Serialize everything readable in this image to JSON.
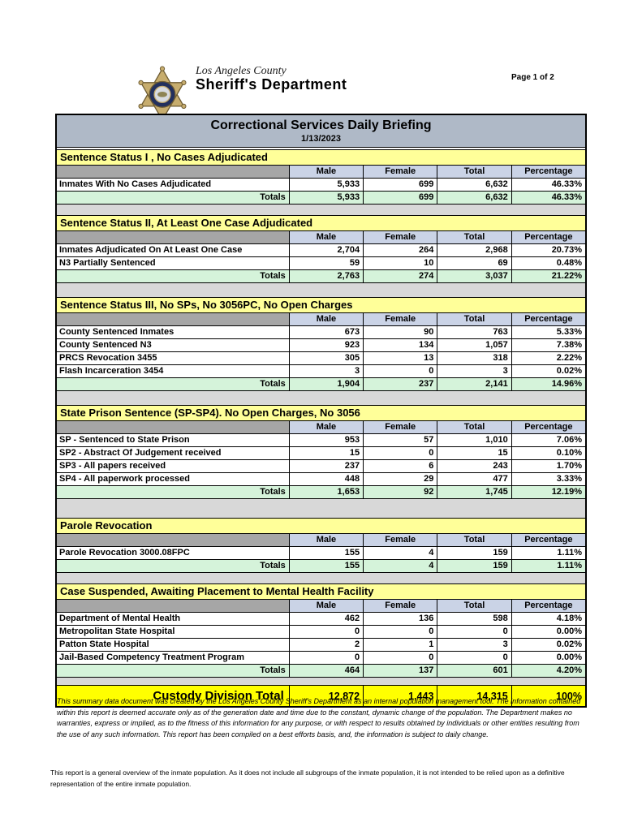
{
  "header": {
    "county": "Los Angeles County",
    "department": "Sheriff's Department",
    "page_label": "Page 1 of 2"
  },
  "title": {
    "main": "Correctional Services Daily Briefing",
    "date": "1/13/2023"
  },
  "table": {
    "columns": [
      "Male",
      "Female",
      "Total",
      "Percentage"
    ],
    "totals_label": "Totals",
    "sections": [
      {
        "title": "Sentence Status I , No Cases Adjudicated",
        "rows": [
          {
            "label": "Inmates With No Cases Adjudicated",
            "values": [
              "5,933",
              "699",
              "6,632",
              "46.33%"
            ]
          }
        ],
        "totals": [
          "5,933",
          "699",
          "6,632",
          "46.33%"
        ]
      },
      {
        "title": "Sentence Status II, At Least One Case Adjudicated",
        "rows": [
          {
            "label": "Inmates Adjudicated On At Least One Case",
            "values": [
              "2,704",
              "264",
              "2,968",
              "20.73%"
            ]
          },
          {
            "label": "N3 Partially Sentenced",
            "values": [
              "59",
              "10",
              "69",
              "0.48%"
            ]
          }
        ],
        "totals": [
          "2,763",
          "274",
          "3,037",
          "21.22%"
        ]
      },
      {
        "title": "Sentence Status III, No SPs, No 3056PC, No Open Charges",
        "rows": [
          {
            "label": "County Sentenced Inmates",
            "values": [
              "673",
              "90",
              "763",
              "5.33%"
            ]
          },
          {
            "label": "County Sentenced N3",
            "values": [
              "923",
              "134",
              "1,057",
              "7.38%"
            ]
          },
          {
            "label": "PRCS Revocation 3455",
            "values": [
              "305",
              "13",
              "318",
              "2.22%"
            ]
          },
          {
            "label": "Flash Incarceration 3454",
            "values": [
              "3",
              "0",
              "3",
              "0.02%"
            ]
          }
        ],
        "totals": [
          "1,904",
          "237",
          "2,141",
          "14.96%"
        ]
      },
      {
        "title": "State Prison Sentence (SP-SP4). No Open Charges, No 3056",
        "rows": [
          {
            "label": "SP - Sentenced to State Prison",
            "values": [
              "953",
              "57",
              "1,010",
              "7.06%"
            ]
          },
          {
            "label": "SP2 - Abstract Of Judgement received",
            "values": [
              "15",
              "0",
              "15",
              "0.10%"
            ]
          },
          {
            "label": "SP3 - All papers received",
            "values": [
              "237",
              "6",
              "243",
              "1.70%"
            ]
          },
          {
            "label": "SP4 - All paperwork processed",
            "values": [
              "448",
              "29",
              "477",
              "3.33%"
            ]
          }
        ],
        "totals": [
          "1,653",
          "92",
          "1,745",
          "12.19%"
        ]
      },
      {
        "title": "Parole Revocation",
        "rows": [
          {
            "label": "Parole Revocation 3000.08FPC",
            "values": [
              "155",
              "4",
              "159",
              "1.11%"
            ]
          }
        ],
        "totals": [
          "155",
          "4",
          "159",
          "1.11%"
        ]
      },
      {
        "title": "Case Suspended, Awaiting Placement to Mental Health Facility",
        "rows": [
          {
            "label": "Department of Mental Health",
            "values": [
              "462",
              "136",
              "598",
              "4.18%"
            ]
          },
          {
            "label": "Metropolitan State Hospital",
            "values": [
              "0",
              "0",
              "0",
              "0.00%"
            ]
          },
          {
            "label": "Patton State Hospital",
            "values": [
              "2",
              "1",
              "3",
              "0.02%"
            ]
          },
          {
            "label": "Jail-Based Competency Treatment Program",
            "values": [
              "0",
              "0",
              "0",
              "0.00%"
            ]
          }
        ],
        "totals": [
          "464",
          "137",
          "601",
          "4.20%"
        ]
      }
    ]
  },
  "custody_total": {
    "label": "Custody Division Total",
    "values": [
      "12,872",
      "1,443",
      "14,315",
      "100%"
    ]
  },
  "disclaimer": "This summary data document was created by the Los Angeles County Sheriff's Department as an internal population management tool.  The information contained within this report is deemed accurate only as of the generation date and time due to the constant, dynamic change of the population.  The Department makes no warranties, express or implied, as to the fitness of this information for any purpose, or with respect to results obtained by individuals or other entities resulting from the use of any such information.  This report has been compiled on a best efforts basis, and, the information is subject to daily change.",
  "footnote": "This report is a general overview of the inmate population.  As it does not include all subgroups of the inmate population, it is not intended to be relied upon as a definitive representation of the entire inmate population.",
  "colors": {
    "title_band": "#AFB9C7",
    "section_header": "#FFFF99",
    "column_header": "#CAD3E6",
    "header_label_gray": "#A6A6A6",
    "totals_row": "#D5F3DA",
    "spacer_gray": "#D8D8D8",
    "custody_row": "#FFFF00",
    "badge_gold": "#C7AD6E",
    "badge_navy": "#23305E"
  }
}
